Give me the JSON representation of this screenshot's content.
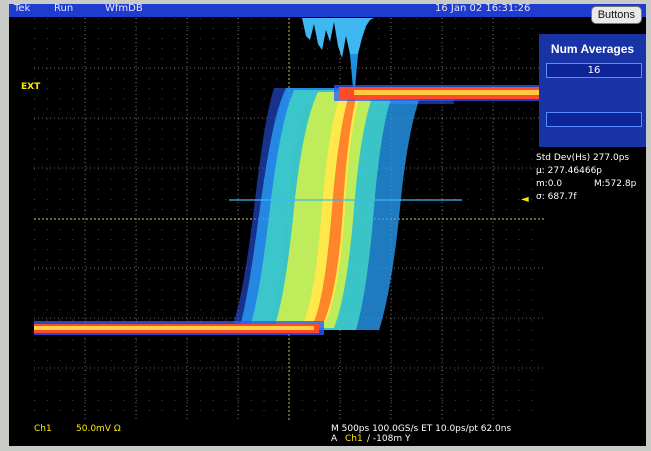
{
  "topbar": {
    "brand": "Tek",
    "state": "Run",
    "mode": "WfmDB",
    "timestamp": "16 Jan 02 16:31:26"
  },
  "buttons_label": "Buttons",
  "num_averages": {
    "title": "Num Averages",
    "value": "16"
  },
  "trigger_marker": "EXT",
  "stats": {
    "std_dev": "Std Dev(Hs)  277.0ps",
    "mu": "μ: 277.46466p",
    "m_min": "m:0.0",
    "m_max": "M:572.8p",
    "sigma": "σ: 687.7f"
  },
  "bottom": {
    "channel": "Ch1",
    "scale": "50.0mV  Ω",
    "timebase": "M 500ps 100.0GS/s ET 10.0ps/pt 62.0ns",
    "trigger_source_prefix": "A",
    "trigger_source": "Ch1",
    "trigger_level": "∕  -108m  Y"
  },
  "colors": {
    "screen": "#000000",
    "grid": "#8c8c8c",
    "accent": "#1733a6",
    "trace_high": "#ff4a2a",
    "trace_mid": "#ffe84a",
    "trace_low": "#2a5bff"
  }
}
